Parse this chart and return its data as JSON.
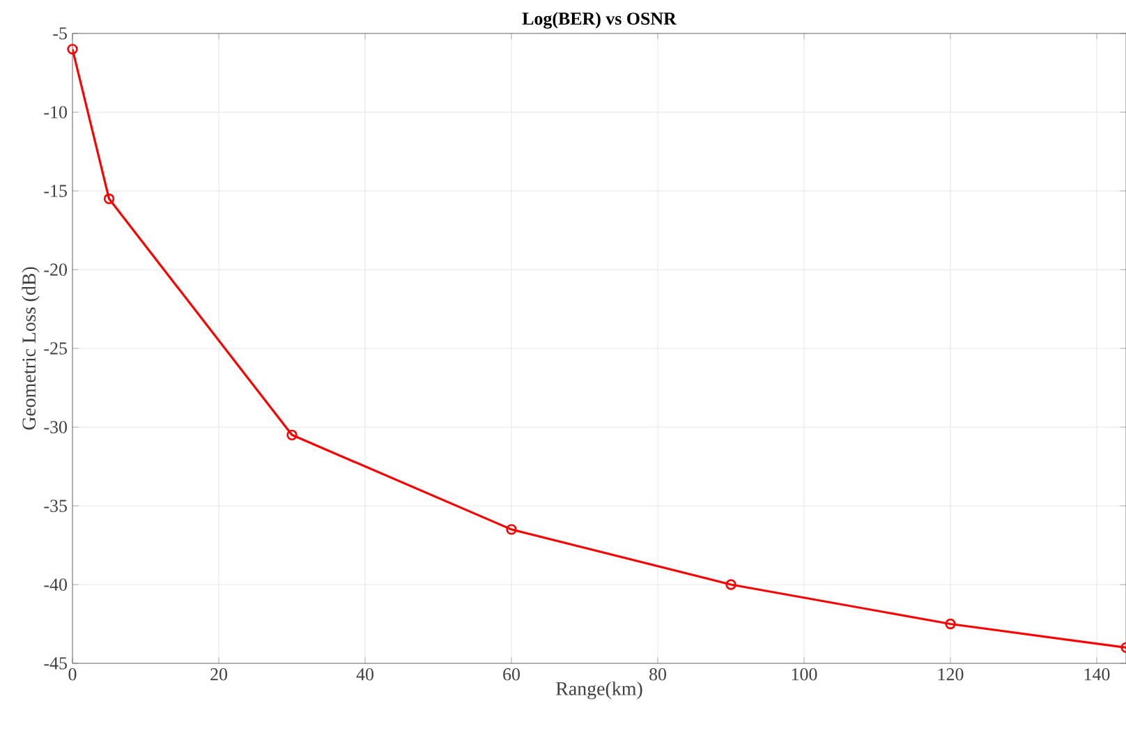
{
  "chart_data": {
    "type": "line",
    "title": "Log(BER) vs OSNR",
    "xlabel": "Range(km)",
    "ylabel": "Geometric Loss (dB)",
    "x": [
      0,
      5,
      30,
      60,
      90,
      120,
      144
    ],
    "series": [
      {
        "color": "#ff0000",
        "values": [
          -6,
          -15.5,
          -30.5,
          -36.5,
          -40,
          -42.5,
          -44
        ]
      }
    ],
    "xlim": [
      0,
      144
    ],
    "xticks": [
      0,
      20,
      40,
      60,
      80,
      100,
      120,
      140
    ],
    "ylim": [
      -45,
      -5
    ],
    "yticks": [
      -45,
      -40,
      -35,
      -30,
      -25,
      -20,
      -15,
      -10,
      -5
    ],
    "grid": true,
    "marker": "circle",
    "line_style": "solid"
  }
}
